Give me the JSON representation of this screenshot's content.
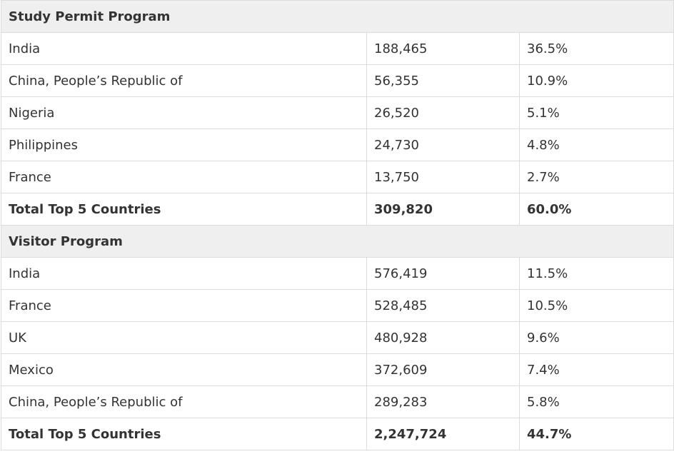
{
  "sections": [
    {
      "title": "Study Permit Program",
      "rows": [
        {
          "country": "India",
          "count": "188,465",
          "percent": "36.5%"
        },
        {
          "country": "China, People’s Republic of",
          "count": "56,355",
          "percent": "10.9%"
        },
        {
          "country": "Nigeria",
          "count": "26,520",
          "percent": "5.1%"
        },
        {
          "country": "Philippines",
          "count": "24,730",
          "percent": "4.8%"
        },
        {
          "country": "France",
          "count": "13,750",
          "percent": "2.7%"
        }
      ],
      "total": {
        "label": "Total Top 5 Countries",
        "count": "309,820",
        "percent": "60.0%"
      }
    },
    {
      "title": "Visitor Program",
      "rows": [
        {
          "country": "India",
          "count": "576,419",
          "percent": "11.5%"
        },
        {
          "country": "France",
          "count": "528,485",
          "percent": "10.5%"
        },
        {
          "country": "UK",
          "count": "480,928",
          "percent": "9.6%"
        },
        {
          "country": "Mexico",
          "count": "372,609",
          "percent": "7.4%"
        },
        {
          "country": "China, People’s Republic of",
          "count": "289,283",
          "percent": "5.8%"
        }
      ],
      "total": {
        "label": "Total Top 5 Countries",
        "count": "2,247,724",
        "percent": "44.7%"
      }
    }
  ]
}
